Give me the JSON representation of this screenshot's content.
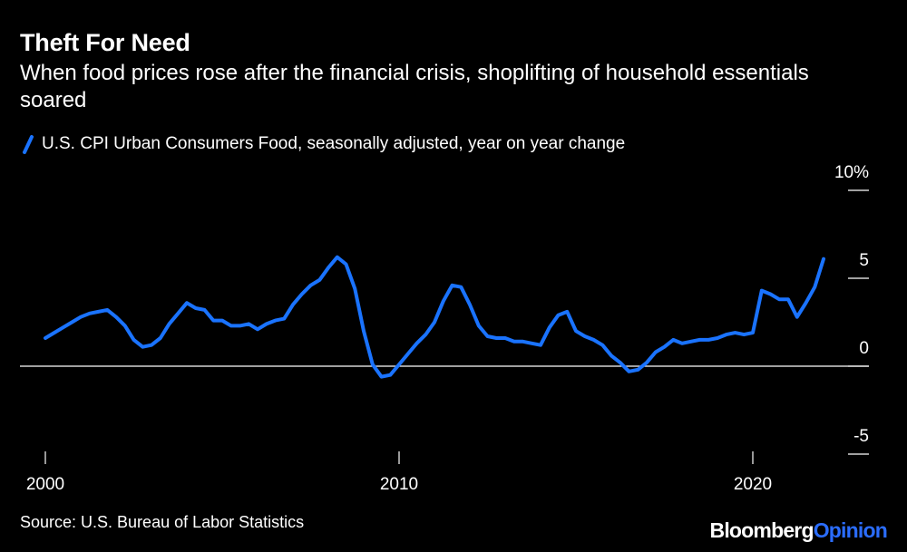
{
  "title": "Theft For Need",
  "subtitle": "When food prices rose after the financial crisis, shoplifting of household essentials soared",
  "source": "Source: U.S. Bureau of Labor Statistics",
  "brand": {
    "main": "Bloomberg",
    "accent": "Opinion"
  },
  "colors": {
    "background": "#000000",
    "line": "#1a73ff",
    "text": "#ffffff",
    "axis": "#ffffff"
  },
  "chart_data": {
    "type": "line",
    "title": "Theft For Need",
    "legend": [
      "U.S. CPI Urban Consumers Food, seasonally adjusted, year on year change"
    ],
    "xlabel": "",
    "ylabel": "",
    "xlim": [
      2000,
      2022.5
    ],
    "ylim": [
      -5,
      10
    ],
    "x_ticks": [
      2000,
      2010,
      2020
    ],
    "x_tick_labels": [
      "2000",
      "2010",
      "2020"
    ],
    "y_ticks": [
      10,
      5,
      0,
      -5
    ],
    "y_tick_labels": [
      "10%",
      "5",
      "0",
      "-5"
    ],
    "series": [
      {
        "name": "U.S. CPI Urban Consumers Food, seasonally adjusted, year on year change",
        "x": [
          2000.0,
          2000.25,
          2000.5,
          2000.75,
          2001.0,
          2001.25,
          2001.5,
          2001.75,
          2002.0,
          2002.25,
          2002.5,
          2002.75,
          2003.0,
          2003.25,
          2003.5,
          2003.75,
          2004.0,
          2004.25,
          2004.5,
          2004.75,
          2005.0,
          2005.25,
          2005.5,
          2005.75,
          2006.0,
          2006.25,
          2006.5,
          2006.75,
          2007.0,
          2007.25,
          2007.5,
          2007.75,
          2008.0,
          2008.25,
          2008.5,
          2008.75,
          2009.0,
          2009.25,
          2009.5,
          2009.75,
          2010.0,
          2010.25,
          2010.5,
          2010.75,
          2011.0,
          2011.25,
          2011.5,
          2011.75,
          2012.0,
          2012.25,
          2012.5,
          2012.75,
          2013.0,
          2013.25,
          2013.5,
          2013.75,
          2014.0,
          2014.25,
          2014.5,
          2014.75,
          2015.0,
          2015.25,
          2015.5,
          2015.75,
          2016.0,
          2016.25,
          2016.5,
          2016.75,
          2017.0,
          2017.25,
          2017.5,
          2017.75,
          2018.0,
          2018.25,
          2018.5,
          2018.75,
          2019.0,
          2019.25,
          2019.5,
          2019.75,
          2020.0,
          2020.25,
          2020.5,
          2020.75,
          2021.0,
          2021.25,
          2021.5,
          2021.75,
          2022.0
        ],
        "values": [
          1.6,
          1.9,
          2.2,
          2.5,
          2.8,
          3.0,
          3.1,
          3.2,
          2.8,
          2.3,
          1.5,
          1.1,
          1.2,
          1.6,
          2.4,
          3.0,
          3.6,
          3.3,
          3.2,
          2.6,
          2.6,
          2.3,
          2.3,
          2.4,
          2.1,
          2.4,
          2.6,
          2.7,
          3.5,
          4.1,
          4.6,
          4.9,
          5.6,
          6.2,
          5.8,
          4.4,
          2.0,
          0.1,
          -0.6,
          -0.5,
          0.1,
          0.7,
          1.3,
          1.8,
          2.5,
          3.7,
          4.6,
          4.5,
          3.5,
          2.3,
          1.7,
          1.6,
          1.6,
          1.4,
          1.4,
          1.3,
          1.2,
          2.2,
          2.9,
          3.1,
          2.0,
          1.7,
          1.5,
          1.2,
          0.6,
          0.2,
          -0.3,
          -0.2,
          0.2,
          0.8,
          1.1,
          1.5,
          1.3,
          1.4,
          1.5,
          1.5,
          1.6,
          1.8,
          1.9,
          1.8,
          1.9,
          4.3,
          4.1,
          3.8,
          3.8,
          2.8,
          3.6,
          4.5,
          6.1
        ]
      }
    ]
  }
}
